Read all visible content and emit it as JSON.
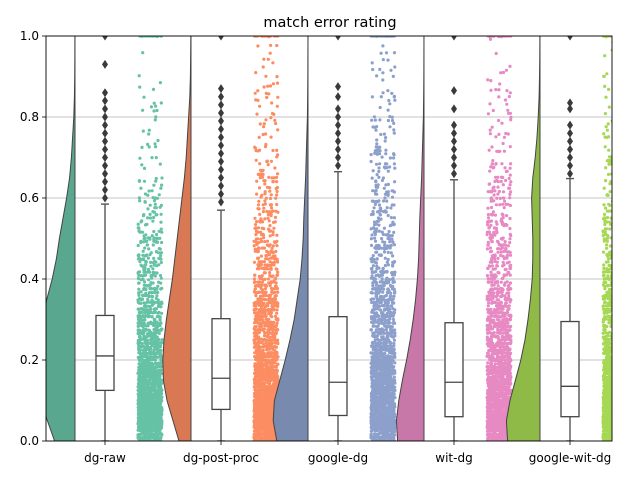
{
  "chart_data": {
    "type": "raincloud",
    "title": "match error rating",
    "xlabel": "",
    "ylabel": "",
    "ylim": [
      0,
      1
    ],
    "y_ticks": [
      "0.0",
      "0.2",
      "0.4",
      "0.6",
      "0.8",
      "1.0"
    ],
    "grid": "horizontal",
    "categories": [
      "dg-raw",
      "dg-post-proc",
      "google-dg",
      "wit-dg",
      "google-wit-dg"
    ],
    "colors": [
      "#66c2a5",
      "#fc8d62",
      "#8da0cb",
      "#e78ac3",
      "#a6d854"
    ],
    "boxes": [
      {
        "q1": 0.125,
        "median": 0.21,
        "q3": 0.31,
        "whisker_low": 0.0,
        "whisker_high": 0.585,
        "outliers": [
          0.6,
          0.62,
          0.64,
          0.66,
          0.68,
          0.7,
          0.72,
          0.74,
          0.76,
          0.78,
          0.8,
          0.82,
          0.84,
          0.86,
          0.93,
          1.0
        ]
      },
      {
        "q1": 0.078,
        "median": 0.155,
        "q3": 0.302,
        "whisker_low": 0.0,
        "whisker_high": 0.57,
        "outliers": [
          0.59,
          0.61,
          0.63,
          0.65,
          0.67,
          0.69,
          0.71,
          0.73,
          0.75,
          0.77,
          0.79,
          0.81,
          0.83,
          0.85,
          0.87,
          1.0
        ]
      },
      {
        "q1": 0.063,
        "median": 0.145,
        "q3": 0.307,
        "whisker_low": 0.0,
        "whisker_high": 0.665,
        "outliers": [
          0.68,
          0.7,
          0.72,
          0.74,
          0.76,
          0.78,
          0.8,
          0.82,
          0.85,
          0.875,
          1.0
        ]
      },
      {
        "q1": 0.06,
        "median": 0.145,
        "q3": 0.292,
        "whisker_low": 0.0,
        "whisker_high": 0.645,
        "outliers": [
          0.66,
          0.68,
          0.7,
          0.72,
          0.74,
          0.76,
          0.78,
          0.82,
          0.865,
          1.0
        ]
      },
      {
        "q1": 0.06,
        "median": 0.135,
        "q3": 0.295,
        "whisker_low": 0.0,
        "whisker_high": 0.648,
        "outliers": [
          0.66,
          0.68,
          0.7,
          0.72,
          0.74,
          0.76,
          0.78,
          0.82,
          0.835,
          1.0
        ]
      }
    ],
    "density": [
      [
        0.34,
        0.46,
        0.58,
        0.62,
        0.62,
        0.6,
        0.55,
        0.47,
        0.38,
        0.31,
        0.26,
        0.2,
        0.14,
        0.09,
        0.06,
        0.04,
        0.02,
        0.01,
        0.005,
        0.003,
        0.002
      ],
      [
        0.2,
        0.3,
        0.4,
        0.46,
        0.47,
        0.45,
        0.41,
        0.36,
        0.31,
        0.27,
        0.23,
        0.19,
        0.15,
        0.11,
        0.08,
        0.06,
        0.04,
        0.02,
        0.01,
        0.006,
        0.003
      ],
      [
        0.52,
        0.58,
        0.56,
        0.47,
        0.38,
        0.3,
        0.23,
        0.18,
        0.13,
        0.1,
        0.08,
        0.07,
        0.055,
        0.04,
        0.03,
        0.02,
        0.01,
        0.006,
        0.003,
        0.002,
        0.001
      ],
      [
        0.44,
        0.46,
        0.42,
        0.36,
        0.29,
        0.23,
        0.18,
        0.14,
        0.11,
        0.09,
        0.08,
        0.07,
        0.055,
        0.04,
        0.03,
        0.02,
        0.01,
        0.006,
        0.003,
        0.002,
        0.001
      ],
      [
        0.54,
        0.56,
        0.5,
        0.41,
        0.32,
        0.25,
        0.2,
        0.16,
        0.13,
        0.12,
        0.12,
        0.13,
        0.14,
        0.12,
        0.08,
        0.05,
        0.03,
        0.015,
        0.008,
        0.004,
        0.002
      ]
    ]
  }
}
